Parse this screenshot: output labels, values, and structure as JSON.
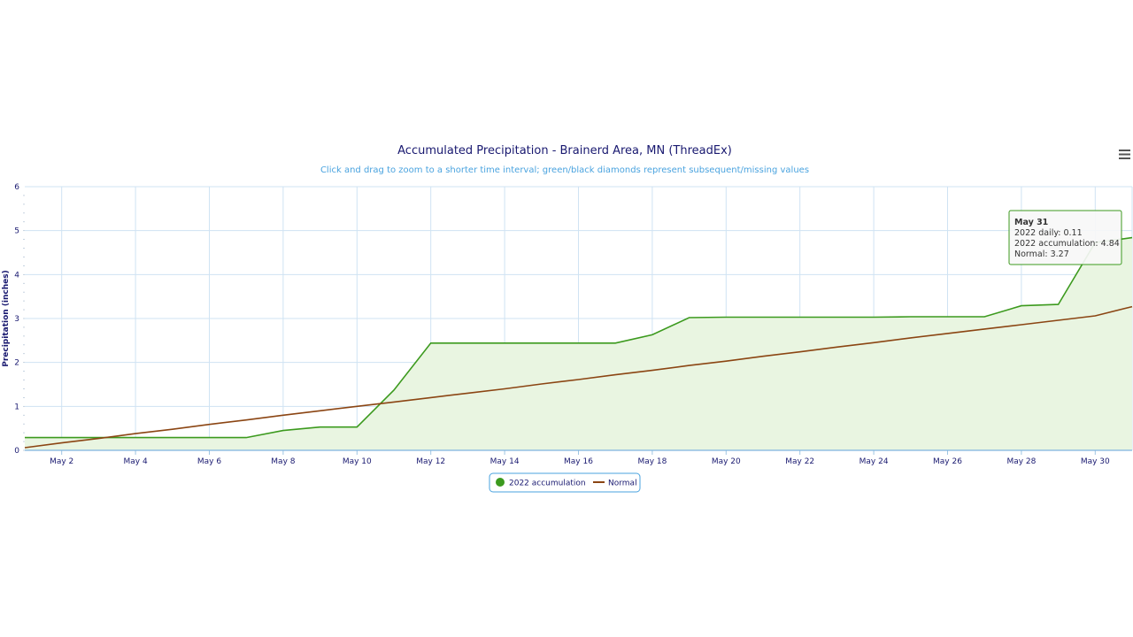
{
  "chart_data": {
    "type": "area",
    "title": "Accumulated Precipitation - Brainerd Area, MN (ThreadEx)",
    "subtitle": "Click and drag to zoom to a shorter time interval; green/black diamonds represent subsequent/missing values",
    "ylabel": "Precipitation (inches)",
    "xlabel": "",
    "ylim": [
      0,
      6
    ],
    "yticks": [
      0,
      1,
      2,
      3,
      4,
      5,
      6
    ],
    "x_day_range": [
      1,
      31
    ],
    "xtick_labels": [
      "May 2",
      "May 4",
      "May 6",
      "May 8",
      "May 10",
      "May 12",
      "May 14",
      "May 16",
      "May 18",
      "May 20",
      "May 22",
      "May 24",
      "May 26",
      "May 28",
      "May 30"
    ],
    "xtick_days": [
      2,
      4,
      6,
      8,
      10,
      12,
      14,
      16,
      18,
      20,
      22,
      24,
      26,
      28,
      30
    ],
    "x": [
      1,
      2,
      3,
      4,
      5,
      6,
      7,
      8,
      9,
      10,
      11,
      12,
      13,
      14,
      15,
      16,
      17,
      18,
      19,
      20,
      21,
      22,
      23,
      24,
      25,
      26,
      27,
      28,
      29,
      30,
      31
    ],
    "grid": true,
    "legend_position": "bottom-center",
    "series": [
      {
        "name": "2022 accumulation",
        "color": "#3c9a1e",
        "fill": "#e9f5e1",
        "values": [
          0.29,
          0.29,
          0.29,
          0.29,
          0.29,
          0.29,
          0.29,
          0.45,
          0.53,
          0.53,
          1.37,
          2.44,
          2.44,
          2.44,
          2.44,
          2.44,
          2.44,
          2.63,
          3.02,
          3.03,
          3.03,
          3.03,
          3.03,
          3.03,
          3.04,
          3.04,
          3.04,
          3.29,
          3.32,
          4.73,
          4.84
        ]
      },
      {
        "name": "Normal",
        "color": "#8b4513",
        "values": [
          0.06,
          0.17,
          0.27,
          0.38,
          0.48,
          0.59,
          0.69,
          0.8,
          0.9,
          1.0,
          1.1,
          1.2,
          1.3,
          1.4,
          1.51,
          1.61,
          1.72,
          1.82,
          1.93,
          2.03,
          2.14,
          2.24,
          2.35,
          2.45,
          2.56,
          2.66,
          2.76,
          2.86,
          2.96,
          3.06,
          3.27
        ]
      }
    ],
    "tooltip": {
      "header": "May 31",
      "lines": [
        "2022 daily: 0.11",
        "2022 accumulation: 4.84",
        "Normal: 3.27"
      ]
    }
  },
  "menu_icon": "hamburger-menu-icon"
}
